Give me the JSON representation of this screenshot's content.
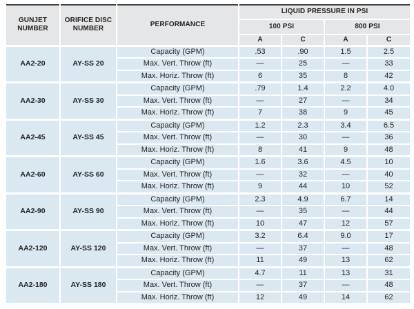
{
  "table": {
    "headers": {
      "gunjet": "GUNJET NUMBER",
      "orifice_disc": "ORIFICE DISC NUMBER",
      "performance": "PERFORMANCE",
      "liquid_pressure": "LIQUID PRESSURE IN PSI",
      "psi_groups": [
        "100 PSI",
        "800 PSI"
      ],
      "subcols": [
        "A",
        "C",
        "A",
        "C"
      ]
    },
    "row_labels": [
      "Capacity (GPM)",
      "Max. Vert. Throw (ft)",
      "Max. Horiz. Throw (ft)"
    ],
    "groups": [
      {
        "gunjet": "AA2-20",
        "disc": "AY-SS 20",
        "rows": [
          [
            ".53",
            ".90",
            "1.5",
            "2.5"
          ],
          [
            "—",
            "25",
            "—",
            "33"
          ],
          [
            "6",
            "35",
            "8",
            "42"
          ]
        ]
      },
      {
        "gunjet": "AA2-30",
        "disc": "AY-SS 30",
        "rows": [
          [
            ".79",
            "1.4",
            "2.2",
            "4.0"
          ],
          [
            "—",
            "27",
            "—",
            "34"
          ],
          [
            "7",
            "38",
            "9",
            "45"
          ]
        ]
      },
      {
        "gunjet": "AA2-45",
        "disc": "AY-SS 45",
        "rows": [
          [
            "1.2",
            "2.3",
            "3.4",
            "6.5"
          ],
          [
            "—",
            "30",
            "—",
            "36"
          ],
          [
            "8",
            "41",
            "9",
            "48"
          ]
        ]
      },
      {
        "gunjet": "AA2-60",
        "disc": "AY-SS 60",
        "rows": [
          [
            "1.6",
            "3.6",
            "4.5",
            "10"
          ],
          [
            "—",
            "32",
            "—",
            "40"
          ],
          [
            "9",
            "44",
            "10",
            "52"
          ]
        ]
      },
      {
        "gunjet": "AA2-90",
        "disc": "AY-SS 90",
        "rows": [
          [
            "2.3",
            "4.9",
            "6.7",
            "14"
          ],
          [
            "—",
            "35",
            "—",
            "44"
          ],
          [
            "10",
            "47",
            "12",
            "57"
          ]
        ]
      },
      {
        "gunjet": "AA2-120",
        "disc": "AY-SS 120",
        "rows": [
          [
            "3.2",
            "6.4",
            "9.0",
            "17"
          ],
          [
            "—",
            "37",
            "—",
            "48"
          ],
          [
            "11",
            "49",
            "13",
            "62"
          ]
        ]
      },
      {
        "gunjet": "AA2-180",
        "disc": "AY-SS 180",
        "rows": [
          [
            "4.7",
            "11",
            "13",
            "31"
          ],
          [
            "—",
            "37",
            "—",
            "48"
          ],
          [
            "12",
            "49",
            "14",
            "62"
          ]
        ]
      }
    ],
    "colors": {
      "header_bg": "#e5e6e7",
      "row_bg": "#d9e8f1",
      "separator": "#ffffff",
      "top_rule": "#414042",
      "text": "#242122"
    }
  }
}
